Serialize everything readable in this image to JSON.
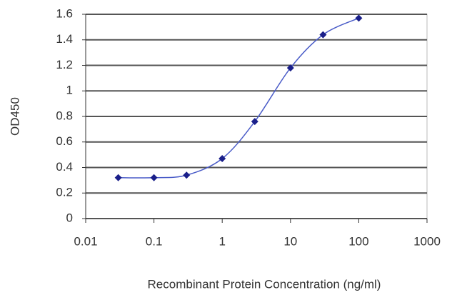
{
  "chart_data": {
    "type": "line",
    "xlabel": "Recombinant Protein Concentration (ng/ml)",
    "ylabel": "OD450",
    "x": [
      0.03,
      0.1,
      0.3,
      1,
      3,
      10,
      30,
      100
    ],
    "values": [
      0.32,
      0.32,
      0.34,
      0.47,
      0.76,
      1.18,
      1.44,
      1.57
    ],
    "color": "#4a5cc8",
    "marker_color": "#1a1f8a",
    "xscale": "log",
    "xlim": [
      0.01,
      1000
    ],
    "xticks": [
      0.01,
      0.1,
      1,
      10,
      100,
      1000
    ],
    "ylim": [
      0,
      1.6
    ],
    "yticks": [
      0,
      0.2,
      0.4,
      0.6,
      0.8,
      1,
      1.2,
      1.4,
      1.6
    ],
    "grid": true
  }
}
